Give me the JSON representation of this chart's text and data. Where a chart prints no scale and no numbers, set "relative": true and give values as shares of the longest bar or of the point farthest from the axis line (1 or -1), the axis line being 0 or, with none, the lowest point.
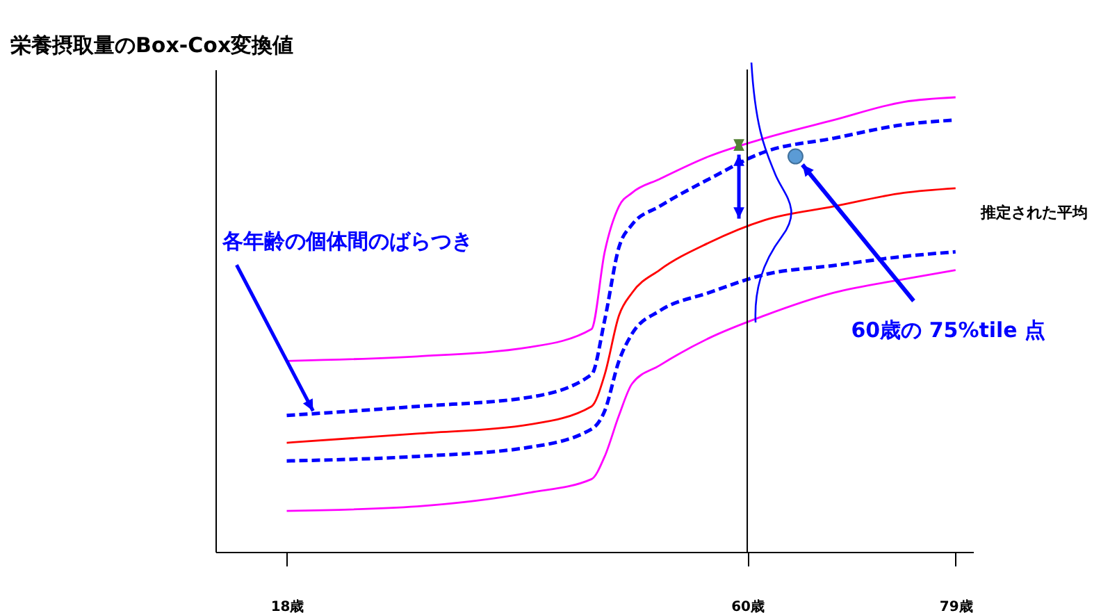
{
  "chart_data": {
    "type": "line",
    "relative": true,
    "ylabel": "栄養摂取量のBox-Cox変換値",
    "x": [
      18,
      29.9,
      40.1,
      45.8,
      47.0,
      48.3,
      49.5,
      52,
      56.5,
      61.6,
      67.9,
      74.3,
      79
    ],
    "xlim": [
      11.5,
      80.6
    ],
    "xticks": [
      {
        "value": 18,
        "label": "18歳"
      },
      {
        "value": 60,
        "label": "60歳"
      },
      {
        "value": 79,
        "label": "79歳"
      }
    ],
    "marker": "none",
    "grid": false,
    "series": [
      {
        "color": "#ff00ff",
        "line_style": "solid",
        "values": [
          0.42,
          0.43,
          0.45,
          0.49,
          0.66,
          0.76,
          0.79,
          0.82,
          0.87,
          0.91,
          0.95,
          0.99,
          1.0
        ]
      },
      {
        "color": "#0000ff",
        "line_style": "dashed",
        "values": [
          0.3,
          0.32,
          0.34,
          0.39,
          0.51,
          0.67,
          0.72,
          0.76,
          0.82,
          0.88,
          0.91,
          0.94,
          0.95
        ]
      },
      {
        "name": "推定された平均",
        "color": "#ff0000",
        "line_style": "solid",
        "values": [
          0.24,
          0.26,
          0.28,
          0.32,
          0.39,
          0.52,
          0.57,
          0.62,
          0.68,
          0.73,
          0.76,
          0.79,
          0.8
        ]
      },
      {
        "color": "#0000ff",
        "line_style": "dashed",
        "values": [
          0.2,
          0.21,
          0.23,
          0.27,
          0.31,
          0.42,
          0.48,
          0.53,
          0.57,
          0.61,
          0.63,
          0.65,
          0.66
        ]
      },
      {
        "color": "#ff00ff",
        "line_style": "solid",
        "values": [
          0.09,
          0.1,
          0.13,
          0.16,
          0.21,
          0.3,
          0.37,
          0.41,
          0.47,
          0.52,
          0.57,
          0.6,
          0.62
        ]
      },
      {
        "type": "scatter",
        "marker": "circle",
        "color": "#5b9bd5",
        "x": [
          64.4
        ],
        "values": [
          0.87
        ]
      }
    ],
    "ref_lines": [
      {
        "axis": "x",
        "value": 60,
        "color": "#000000"
      }
    ],
    "annotations": [
      {
        "text": "各年齢の個体間のばらつき",
        "x": 20.4,
        "y": 0.31
      },
      {
        "text": "60歳の 75%tile 点",
        "x": 64.4,
        "y": 0.87
      }
    ]
  }
}
